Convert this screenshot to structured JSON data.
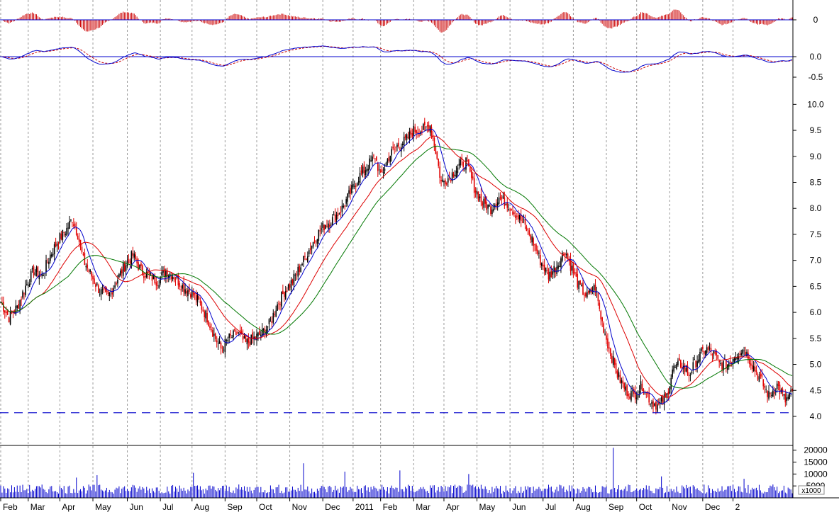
{
  "colors": {
    "up_candle": "#000000",
    "down_candle": "#e00000",
    "ma_short": "#0000cc",
    "ma_mid": "#dd0000",
    "ma_long": "#007700",
    "macd_hist": "#cc0000",
    "oscillator_line": "#0000cc",
    "oscillator_signal": "#cc0000",
    "zero_line": "#0000cc",
    "support_line": "#0000cc",
    "volume_bar": "#0000cc",
    "gridline": "#9a9a9a"
  },
  "chart_data": {
    "type": "candlestick",
    "grid": "vertical dashed",
    "x_tick_labels": [
      "Feb",
      "Mar",
      "Apr",
      "May",
      "Jun",
      "Jul",
      "Aug",
      "Sep",
      "Oct",
      "Nov",
      "Dec",
      "2011",
      "Feb",
      "Mar",
      "Apr",
      "May",
      "Jun",
      "Jul",
      "Aug",
      "Sep",
      "Oct",
      "Nov",
      "Dec",
      "2"
    ],
    "panels": {
      "macd": {
        "tick_labels": [
          "0"
        ],
        "ylim": [
          -1,
          1
        ]
      },
      "oscillator": {
        "tick_labels": [
          "0.0",
          "0.0",
          "-0.5"
        ],
        "ylim": [
          -0.6,
          0.3
        ]
      },
      "price": {
        "tick_labels": [
          "10.0",
          "9.5",
          "9.0",
          "8.5",
          "8.0",
          "7.5",
          "7.0",
          "6.5",
          "6.0",
          "5.5",
          "5.0",
          "4.5",
          "4.0"
        ],
        "ylim": [
          3.7,
          10.1
        ],
        "support_level": 4.07,
        "close_anchors": [
          [
            0,
            6.2
          ],
          [
            6,
            5.9
          ],
          [
            12,
            6.1
          ],
          [
            18,
            6.5
          ],
          [
            24,
            6.8
          ],
          [
            30,
            6.7
          ],
          [
            36,
            7.1
          ],
          [
            42,
            7.4
          ],
          [
            48,
            7.6
          ],
          [
            52,
            7.8
          ],
          [
            56,
            7.5
          ],
          [
            60,
            7.0
          ],
          [
            66,
            6.7
          ],
          [
            72,
            6.4
          ],
          [
            78,
            6.3
          ],
          [
            84,
            6.6
          ],
          [
            90,
            6.9
          ],
          [
            96,
            7.1
          ],
          [
            102,
            6.8
          ],
          [
            108,
            6.7
          ],
          [
            114,
            6.6
          ],
          [
            120,
            6.8
          ],
          [
            126,
            6.7
          ],
          [
            132,
            6.5
          ],
          [
            138,
            6.4
          ],
          [
            144,
            6.2
          ],
          [
            150,
            5.9
          ],
          [
            156,
            5.5
          ],
          [
            160,
            5.3
          ],
          [
            166,
            5.5
          ],
          [
            172,
            5.6
          ],
          [
            178,
            5.4
          ],
          [
            184,
            5.5
          ],
          [
            190,
            5.6
          ],
          [
            196,
            5.8
          ],
          [
            200,
            6.1
          ],
          [
            206,
            6.4
          ],
          [
            212,
            6.6
          ],
          [
            218,
            6.9
          ],
          [
            224,
            7.2
          ],
          [
            230,
            7.5
          ],
          [
            236,
            7.7
          ],
          [
            242,
            7.8
          ],
          [
            248,
            8.0
          ],
          [
            254,
            8.3
          ],
          [
            260,
            8.6
          ],
          [
            266,
            8.8
          ],
          [
            272,
            9.0
          ],
          [
            276,
            8.6
          ],
          [
            282,
            9.0
          ],
          [
            288,
            9.2
          ],
          [
            294,
            9.3
          ],
          [
            300,
            9.5
          ],
          [
            306,
            9.5
          ],
          [
            312,
            9.6
          ],
          [
            316,
            9.1
          ],
          [
            320,
            8.5
          ],
          [
            326,
            8.6
          ],
          [
            332,
            8.8
          ],
          [
            338,
            8.9
          ],
          [
            344,
            8.4
          ],
          [
            350,
            8.1
          ],
          [
            356,
            8.0
          ],
          [
            362,
            8.2
          ],
          [
            368,
            8.1
          ],
          [
            374,
            7.9
          ],
          [
            380,
            7.7
          ],
          [
            386,
            7.4
          ],
          [
            392,
            7.0
          ],
          [
            398,
            6.7
          ],
          [
            404,
            6.9
          ],
          [
            410,
            7.2
          ],
          [
            414,
            6.9
          ],
          [
            420,
            6.5
          ],
          [
            426,
            6.3
          ],
          [
            432,
            6.5
          ],
          [
            436,
            5.9
          ],
          [
            442,
            5.3
          ],
          [
            448,
            4.8
          ],
          [
            454,
            4.5
          ],
          [
            460,
            4.4
          ],
          [
            466,
            4.6
          ],
          [
            472,
            4.3
          ],
          [
            478,
            4.2
          ],
          [
            484,
            4.4
          ],
          [
            488,
            4.9
          ],
          [
            494,
            5.0
          ],
          [
            500,
            4.8
          ],
          [
            506,
            5.1
          ],
          [
            512,
            5.3
          ],
          [
            518,
            5.2
          ],
          [
            522,
            5.0
          ],
          [
            528,
            5.0
          ],
          [
            534,
            5.2
          ],
          [
            540,
            5.3
          ],
          [
            546,
            5.0
          ],
          [
            552,
            4.7
          ],
          [
            558,
            4.4
          ],
          [
            564,
            4.6
          ],
          [
            570,
            4.3
          ],
          [
            575,
            4.45
          ]
        ],
        "series": [
          {
            "name": "",
            "color_key": "ma_short",
            "window": 10
          },
          {
            "name": "",
            "color_key": "ma_mid",
            "window": 30
          },
          {
            "name": "",
            "color_key": "ma_long",
            "window": 50
          }
        ]
      },
      "volume": {
        "tick_labels": [
          "20000",
          "15000",
          "10000",
          "5000"
        ],
        "unit_label": "x1000",
        "ylim": [
          0,
          22000
        ],
        "typical": 3500,
        "spikes": [
          [
            55,
            8500
          ],
          [
            70,
            9500
          ],
          [
            140,
            10500
          ],
          [
            220,
            14500
          ],
          [
            250,
            11000
          ],
          [
            290,
            11500
          ],
          [
            340,
            10000
          ],
          [
            445,
            21000
          ],
          [
            480,
            9000
          ],
          [
            540,
            8000
          ]
        ]
      }
    }
  }
}
